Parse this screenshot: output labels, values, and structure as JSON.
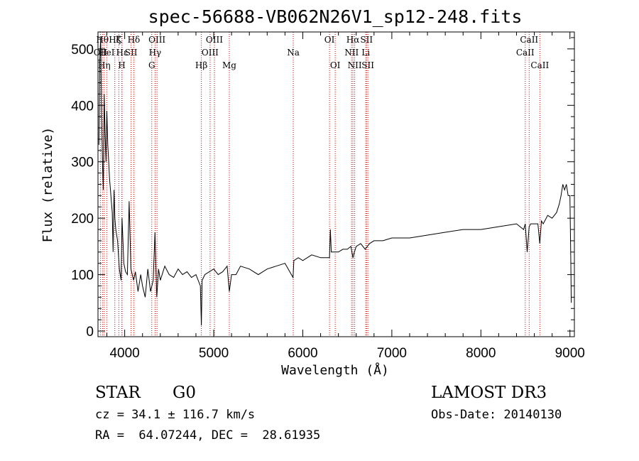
{
  "chart_data": {
    "type": "line",
    "title": "spec-56688-VB062N26V1_sp12-248.fits",
    "xlabel": "Wavelength (Å)",
    "ylabel": "Flux (relative)",
    "xlim": [
      3700,
      9050
    ],
    "ylim": [
      -10,
      530
    ],
    "xticks": [
      {
        "value": 4000,
        "label": "4000"
      },
      {
        "value": 5000,
        "label": "5000"
      },
      {
        "value": 6000,
        "label": "6000"
      },
      {
        "value": 7000,
        "label": "7000"
      },
      {
        "value": 8000,
        "label": "8000"
      },
      {
        "value": 9000,
        "label": "9000"
      }
    ],
    "yticks": [
      {
        "value": 0,
        "label": "0"
      },
      {
        "value": 100,
        "label": "100"
      },
      {
        "value": 200,
        "label": "200"
      },
      {
        "value": 300,
        "label": "300"
      },
      {
        "value": 400,
        "label": "400"
      },
      {
        "value": 500,
        "label": "500"
      }
    ],
    "grid": false,
    "line_color": "#000000",
    "marker_color": "#cc0000",
    "series": [
      {
        "x": [
          3710,
          3720,
          3730,
          3740,
          3750,
          3760,
          3770,
          3780,
          3790,
          3800,
          3810,
          3820,
          3830,
          3840,
          3850,
          3860,
          3870,
          3880,
          3890,
          3900,
          3920,
          3940,
          3960,
          3970,
          3990,
          4010,
          4030,
          4050,
          4070,
          4100,
          4120,
          4150,
          4180,
          4200,
          4230,
          4260,
          4290,
          4320,
          4340,
          4360,
          4380,
          4400,
          4450,
          4500,
          4550,
          4600,
          4650,
          4700,
          4750,
          4800,
          4850,
          4861,
          4870,
          4900,
          4950,
          5000,
          5050,
          5100,
          5150,
          5175,
          5200,
          5250,
          5300,
          5400,
          5500,
          5600,
          5700,
          5800,
          5890,
          5900,
          5950,
          6000,
          6100,
          6200,
          6300,
          6310,
          6320,
          6360,
          6400,
          6450,
          6500,
          6540,
          6563,
          6580,
          6600,
          6650,
          6700,
          6750,
          6800,
          6900,
          7000,
          7200,
          7400,
          7600,
          7800,
          8000,
          8200,
          8400,
          8480,
          8498,
          8520,
          8542,
          8560,
          8600,
          8640,
          8662,
          8680,
          8700,
          8750,
          8800,
          8850,
          8880,
          8900,
          8920,
          8940,
          8960,
          8980,
          9000,
          9010,
          9015
        ],
        "y": [
          330,
          480,
          520,
          390,
          300,
          250,
          420,
          350,
          300,
          390,
          330,
          300,
          270,
          250,
          230,
          210,
          140,
          250,
          200,
          180,
          160,
          110,
          90,
          200,
          120,
          105,
          100,
          230,
          110,
          90,
          105,
          70,
          100,
          80,
          60,
          110,
          70,
          90,
          175,
          60,
          110,
          90,
          115,
          100,
          95,
          110,
          100,
          105,
          95,
          100,
          80,
          10,
          90,
          100,
          105,
          110,
          100,
          105,
          115,
          70,
          100,
          100,
          115,
          110,
          100,
          110,
          115,
          120,
          95,
          125,
          130,
          125,
          135,
          130,
          130,
          180,
          140,
          140,
          140,
          145,
          145,
          150,
          130,
          140,
          150,
          155,
          145,
          155,
          160,
          160,
          165,
          165,
          170,
          175,
          180,
          180,
          185,
          190,
          180,
          190,
          140,
          185,
          190,
          190,
          190,
          155,
          195,
          190,
          205,
          200,
          210,
          225,
          240,
          260,
          250,
          260,
          240,
          240,
          120,
          50
        ]
      }
    ],
    "spectral_lines": [
      {
        "wavelength": 3727,
        "label": "OII",
        "row": 1
      },
      {
        "wavelength": 3750,
        "label": "Hθ",
        "row": 0
      },
      {
        "wavelength": 3770,
        "label": "Hη",
        "row": 2
      },
      {
        "wavelength": 3798,
        "label": "HeI",
        "row": 1
      },
      {
        "wavelength": 3889,
        "label": "Hζ",
        "row": 0
      },
      {
        "wavelength": 3934,
        "label": "K",
        "row": 0
      },
      {
        "wavelength": 3968,
        "label": "H",
        "row": 2
      },
      {
        "wavelength": 3970,
        "label": "Hε",
        "row": 1
      },
      {
        "wavelength": 4072,
        "label": "SII",
        "row": 1
      },
      {
        "wavelength": 4102,
        "label": "Hδ",
        "row": 0
      },
      {
        "wavelength": 4304,
        "label": "G",
        "row": 2
      },
      {
        "wavelength": 4341,
        "label": "Hγ",
        "row": 1
      },
      {
        "wavelength": 4363,
        "label": "OIII",
        "row": 0
      },
      {
        "wavelength": 4861,
        "label": "Hβ",
        "row": 2
      },
      {
        "wavelength": 4959,
        "label": "OIII",
        "row": 1
      },
      {
        "wavelength": 5007,
        "label": "OIII",
        "row": 0
      },
      {
        "wavelength": 5175,
        "label": "Mg",
        "row": 2
      },
      {
        "wavelength": 5893,
        "label": "Na",
        "row": 1
      },
      {
        "wavelength": 6300,
        "label": "OI",
        "row": 0
      },
      {
        "wavelength": 6364,
        "label": "OI",
        "row": 2
      },
      {
        "wavelength": 6548,
        "label": "NII",
        "row": 1
      },
      {
        "wavelength": 6563,
        "label": "Hα",
        "row": 0
      },
      {
        "wavelength": 6583,
        "label": "NII",
        "row": 2
      },
      {
        "wavelength": 6707,
        "label": "Li",
        "row": 1
      },
      {
        "wavelength": 6716,
        "label": "SII",
        "row": 0
      },
      {
        "wavelength": 6731,
        "label": "SII",
        "row": 2
      },
      {
        "wavelength": 8498,
        "label": "CaII",
        "row": 1
      },
      {
        "wavelength": 8542,
        "label": "CaII",
        "row": 0
      },
      {
        "wavelength": 8662,
        "label": "CaII",
        "row": 2
      }
    ]
  },
  "info": {
    "class_label": "STAR",
    "subclass_label": "G0",
    "survey_label": "LAMOST DR3",
    "cz_text": "cz = 34.1 ± 116.7 km/s",
    "obs_date_text": "Obs-Date: 20140130",
    "coords_text": "RA =  64.07244, DEC =  28.61935"
  }
}
